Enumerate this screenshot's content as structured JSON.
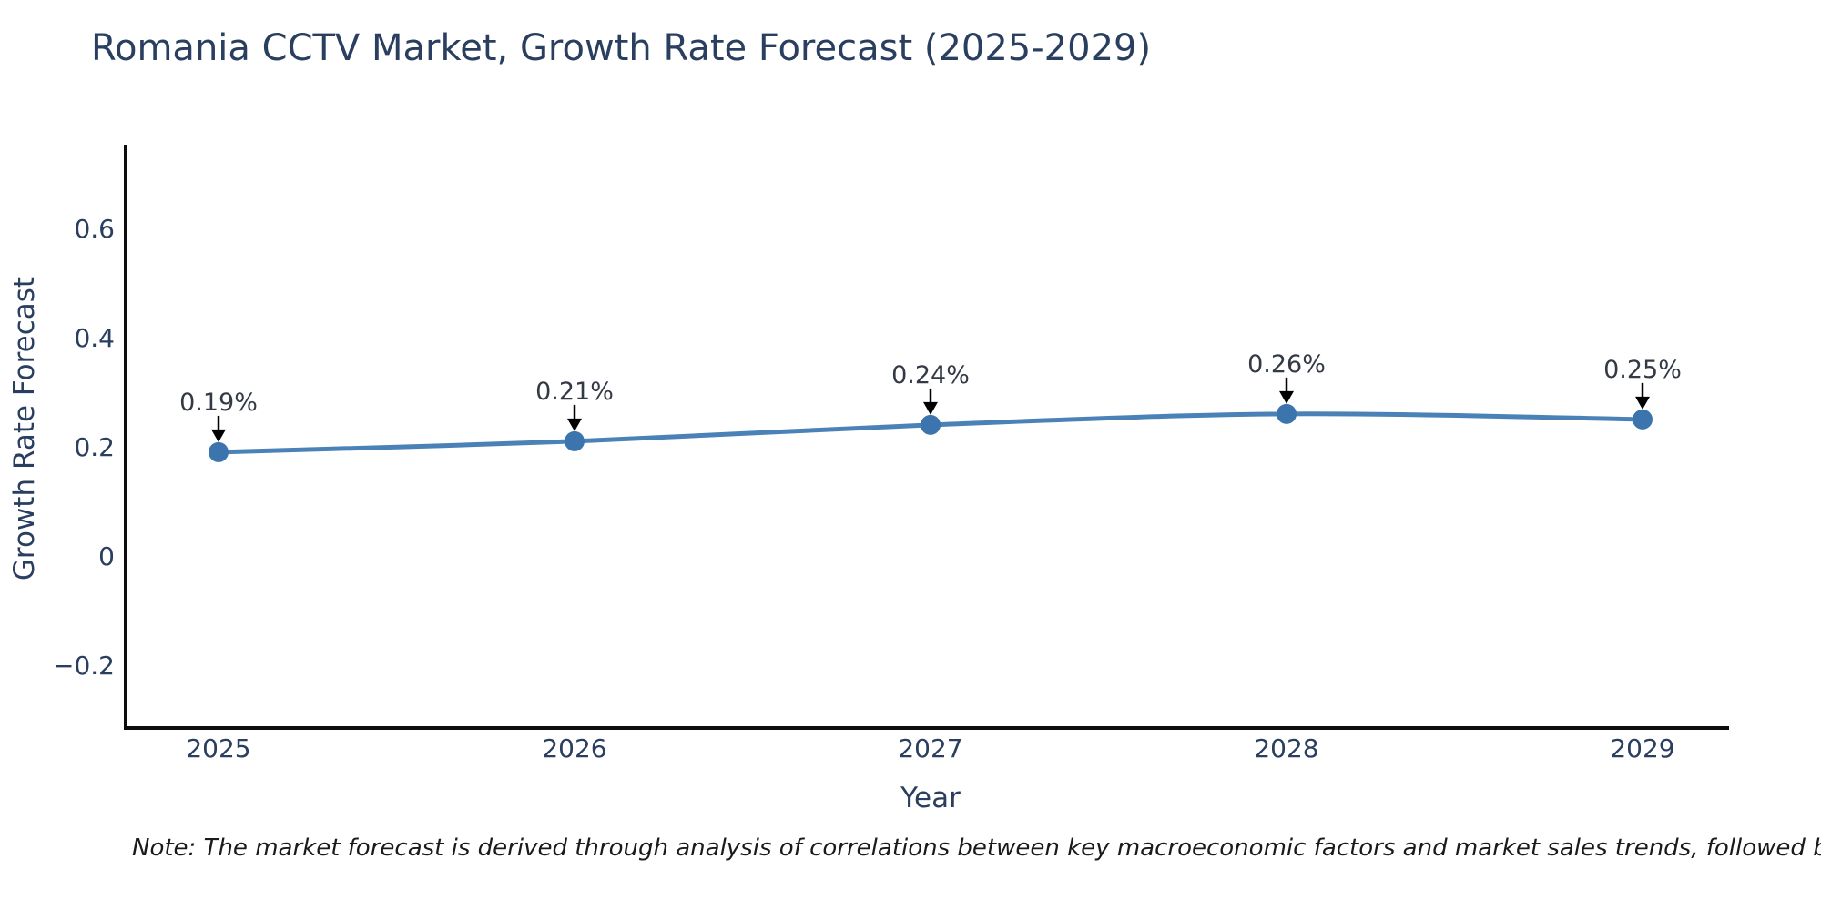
{
  "chart_data": {
    "type": "line",
    "title": "Romania CCTV Market, Growth Rate Forecast (2025-2029)",
    "xlabel": "Year",
    "ylabel": "Growth Rate Forecast",
    "x": [
      2025,
      2026,
      2027,
      2028,
      2029
    ],
    "xtick_labels": [
      "2025",
      "2026",
      "2027",
      "2028",
      "2029"
    ],
    "series": [
      {
        "name": "Growth Rate Forecast",
        "values": [
          0.19,
          0.21,
          0.24,
          0.26,
          0.25
        ],
        "point_labels": [
          "0.19%",
          "0.21%",
          "0.24%",
          "0.26%",
          "0.25%"
        ]
      }
    ],
    "ytick_values": [
      -0.2,
      0,
      0.2,
      0.4,
      0.6
    ],
    "ytick_labels": [
      "−0.2",
      "0",
      "0.2",
      "0.4",
      "0.6"
    ],
    "ylim": [
      -0.315,
      0.753
    ],
    "grid": false,
    "legend": "none",
    "annotations_style": "value labels above points with downward black arrows",
    "colors": {
      "line": "#4a82b8",
      "marker": "#3c74ae",
      "axis": "#0d0d0d",
      "title_text": "#2a3f5f",
      "tick_text": "#2a3f5f",
      "annotation_text": "#333a45",
      "arrow": "#000000",
      "note_text": "#1a1a1a",
      "background": "#ffffff"
    },
    "note": "Note: The market forecast is derived through analysis of correlations between key macroeconomic factors and market sales trends, followed by predictive modeling to project future sa"
  }
}
